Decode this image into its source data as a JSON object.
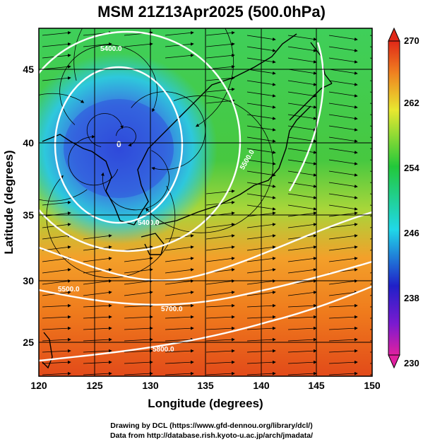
{
  "title": "MSM 21Z13Apr2025 (500.0hPa)",
  "xlabel": "Longitude (degrees)",
  "ylabel": "Latitude  (degrees)",
  "x_ticks": [
    "120",
    "125",
    "130",
    "135",
    "140",
    "145",
    "150"
  ],
  "y_ticks": [
    "25",
    "30",
    "35",
    "40",
    "45"
  ],
  "colorbar_ticks": [
    "270",
    "262",
    "254",
    "246",
    "238",
    "230"
  ],
  "contour_labels": [
    "5400.0",
    "5400.0",
    "5500.0",
    "5500.0",
    "5700.0",
    "5800.0"
  ],
  "credit_line1": "Drawing by DCL (https://www.gfd-dennou.org/library/dcl/)",
  "credit_line2": "Data from http://database.rish.kyoto-u.ac.jp/arch/jmadata/",
  "chart_data": {
    "type": "heatmap",
    "variable_colorbar_range": [
      230,
      270
    ],
    "xlim": [
      120,
      150
    ],
    "ylim": [
      22.5,
      47.5
    ],
    "low_center": {
      "lon": 127.5,
      "lat": 40.0
    },
    "contour_values": [
      5400,
      5500,
      5700,
      5800
    ],
    "overlay": "streamlines",
    "colors": {
      "cold": "#2a3fd0",
      "cyan": "#22d3e0",
      "green": "#33c23a",
      "yellow": "#e6e22a",
      "orange": "#f08c1c",
      "red": "#e2451a",
      "contour": "#ffffff"
    }
  }
}
